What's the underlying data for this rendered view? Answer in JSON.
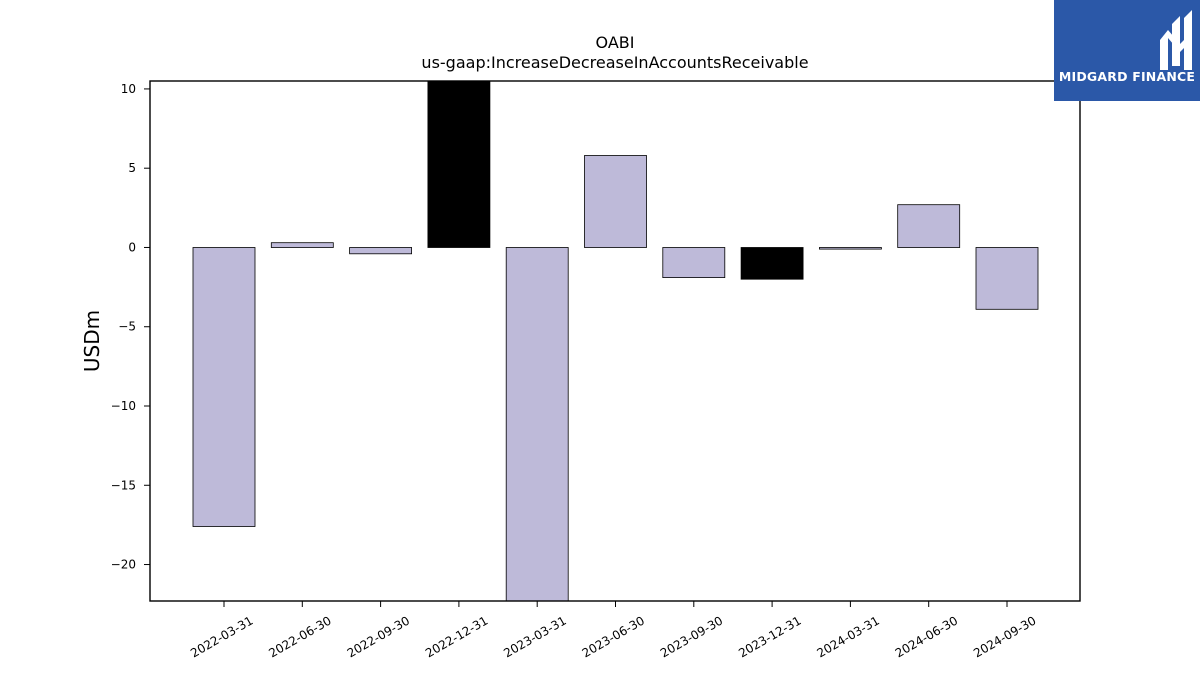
{
  "chart_data": {
    "type": "bar",
    "title": "OABI",
    "subtitle": "us-gaap:IncreaseDecreaseInAccountsReceivable",
    "xlabel": "",
    "ylabel": "USDm",
    "categories": [
      "2022-03-31",
      "2022-06-30",
      "2022-09-30",
      "2022-12-31",
      "2023-03-31",
      "2023-06-30",
      "2023-09-30",
      "2023-12-31",
      "2024-03-31",
      "2024-06-30",
      "2024-09-30"
    ],
    "values": [
      -17.6,
      0.3,
      -0.4,
      10.5,
      -22.3,
      5.8,
      -1.9,
      -2.0,
      -0.1,
      2.7,
      -3.9
    ],
    "bar_colors": [
      "#bebad9",
      "#bebad9",
      "#bebad9",
      "#000000",
      "#bebad9",
      "#bebad9",
      "#bebad9",
      "#000000",
      "#bebad9",
      "#bebad9",
      "#bebad9"
    ],
    "ylim": [
      -22.3,
      10.5
    ],
    "yticks": [
      10,
      5,
      0,
      -5,
      -10,
      -15,
      -20
    ],
    "grid": false,
    "legend": "none"
  },
  "logo": {
    "text": "MIDGARD FINANCE",
    "background": "#2b58a8",
    "icon": "midgard-m-icon"
  }
}
